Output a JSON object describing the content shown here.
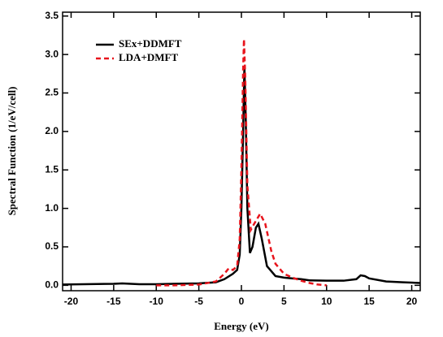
{
  "chart_data": {
    "type": "line",
    "xlabel": "Energy (eV)",
    "ylabel": "Spectral Function (1/eV/cell)",
    "xlim": [
      -21,
      21
    ],
    "ylim": [
      -0.07,
      3.55
    ],
    "xticks": [
      -20,
      -15,
      -10,
      -5,
      0,
      5,
      10,
      15,
      20
    ],
    "yticks": [
      {
        "value": 0,
        "label": "0.0"
      },
      {
        "value": 0.5,
        "label": "0.5"
      },
      {
        "value": 1,
        "label": "1.0"
      },
      {
        "value": 1.5,
        "label": "1.5"
      },
      {
        "value": 2,
        "label": "2.0"
      },
      {
        "value": 2.5,
        "label": "2.5"
      },
      {
        "value": 3,
        "label": "3.0"
      },
      {
        "value": 3.5,
        "label": "3.5"
      }
    ],
    "legend": "upper left",
    "series": [
      {
        "name": "SEx+DDMFT",
        "color": "#000000",
        "dash": "solid",
        "x": [
          -21,
          -15,
          -14,
          -12,
          -10,
          -8,
          -5,
          -3,
          -2,
          -1,
          -0.5,
          -0.2,
          0,
          0.2,
          0.35,
          0.5,
          0.7,
          1.0,
          1.3,
          1.7,
          2.0,
          2.4,
          3,
          4,
          5,
          6,
          7,
          8,
          10,
          12,
          13.5,
          14,
          14.5,
          15,
          17,
          19,
          21
        ],
        "values": [
          0.01,
          0.02,
          0.025,
          0.015,
          0.015,
          0.02,
          0.025,
          0.04,
          0.08,
          0.15,
          0.2,
          0.4,
          1.0,
          2.0,
          2.85,
          2.2,
          1.0,
          0.42,
          0.5,
          0.75,
          0.8,
          0.6,
          0.25,
          0.12,
          0.1,
          0.09,
          0.08,
          0.065,
          0.06,
          0.06,
          0.08,
          0.13,
          0.12,
          0.09,
          0.05,
          0.04,
          0.03
        ]
      },
      {
        "name": "LDA+DMFT",
        "color": "#e8141c",
        "dash": "dashed",
        "x": [
          -10,
          -8,
          -5,
          -3,
          -2,
          -1.5,
          -1,
          -0.5,
          -0.2,
          0,
          0.2,
          0.3,
          0.45,
          0.7,
          1.1,
          1.5,
          2.2,
          2.8,
          3.5,
          4,
          5,
          6,
          7,
          8,
          9,
          10
        ],
        "values": [
          0.0,
          0.0,
          0.01,
          0.05,
          0.15,
          0.22,
          0.2,
          0.25,
          0.6,
          1.5,
          2.8,
          3.2,
          2.7,
          1.3,
          0.72,
          0.8,
          0.93,
          0.8,
          0.45,
          0.28,
          0.15,
          0.1,
          0.06,
          0.03,
          0.01,
          0.0
        ]
      }
    ]
  }
}
